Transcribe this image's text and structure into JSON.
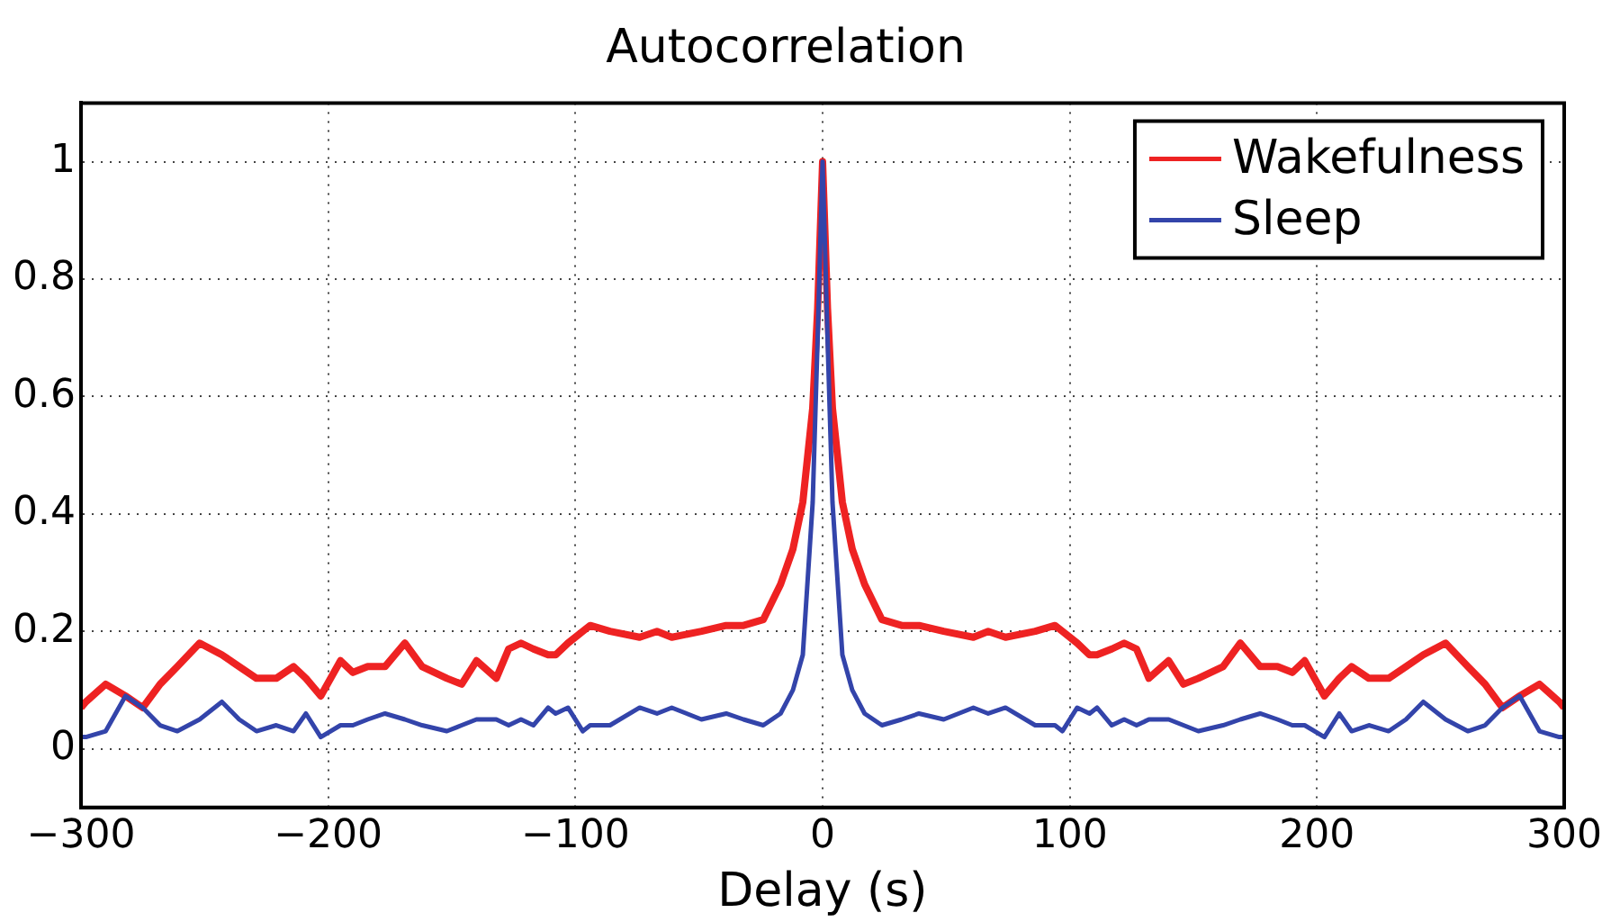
{
  "chart_data": {
    "type": "line",
    "title": "Autocorrelation",
    "xlabel": "Delay (s)",
    "x": [
      -300,
      -298,
      -290,
      -282,
      -275,
      -268,
      -261,
      -252,
      -243,
      -236,
      -229,
      -221,
      -214,
      -209,
      -203,
      -195,
      -190,
      -184,
      -177,
      -169,
      -162,
      -152,
      -146,
      -140,
      -132,
      -127,
      -122,
      -117,
      -111,
      -108,
      -103,
      -97,
      -94,
      -86,
      -74,
      -67,
      -61,
      -49,
      -39,
      -32,
      -24,
      -17,
      -12,
      -8,
      -4,
      -2,
      0,
      2,
      4,
      8,
      12,
      17,
      24,
      32,
      39,
      49,
      61,
      67,
      74,
      86,
      94,
      97,
      103,
      108,
      111,
      117,
      122,
      127,
      132,
      140,
      146,
      152,
      162,
      169,
      177,
      184,
      190,
      195,
      203,
      209,
      214,
      221,
      229,
      236,
      243,
      252,
      261,
      268,
      275,
      282,
      290,
      298,
      300
    ],
    "series": [
      {
        "name": "Wakefulness",
        "color": "#ee2222",
        "values": [
          0.07,
          0.08,
          0.11,
          0.09,
          0.07,
          0.11,
          0.14,
          0.18,
          0.16,
          0.14,
          0.12,
          0.12,
          0.14,
          0.12,
          0.09,
          0.15,
          0.13,
          0.14,
          0.14,
          0.18,
          0.14,
          0.12,
          0.11,
          0.15,
          0.12,
          0.17,
          0.18,
          0.17,
          0.16,
          0.16,
          0.18,
          0.2,
          0.21,
          0.2,
          0.19,
          0.2,
          0.19,
          0.2,
          0.21,
          0.21,
          0.22,
          0.28,
          0.34,
          0.42,
          0.58,
          0.75,
          1.0,
          0.75,
          0.58,
          0.42,
          0.34,
          0.28,
          0.22,
          0.21,
          0.21,
          0.2,
          0.19,
          0.2,
          0.19,
          0.2,
          0.21,
          0.2,
          0.18,
          0.16,
          0.16,
          0.17,
          0.18,
          0.17,
          0.12,
          0.15,
          0.11,
          0.12,
          0.14,
          0.18,
          0.14,
          0.14,
          0.13,
          0.15,
          0.09,
          0.12,
          0.14,
          0.12,
          0.12,
          0.14,
          0.16,
          0.18,
          0.14,
          0.11,
          0.07,
          0.09,
          0.11,
          0.08,
          0.07
        ]
      },
      {
        "name": "Sleep",
        "color": "#3344aa",
        "values": [
          0.02,
          0.02,
          0.03,
          0.09,
          0.07,
          0.04,
          0.03,
          0.05,
          0.08,
          0.05,
          0.03,
          0.04,
          0.03,
          0.06,
          0.02,
          0.04,
          0.04,
          0.05,
          0.06,
          0.05,
          0.04,
          0.03,
          0.04,
          0.05,
          0.05,
          0.04,
          0.05,
          0.04,
          0.07,
          0.06,
          0.07,
          0.03,
          0.04,
          0.04,
          0.07,
          0.06,
          0.07,
          0.05,
          0.06,
          0.05,
          0.04,
          0.06,
          0.1,
          0.16,
          0.42,
          0.7,
          1.0,
          0.7,
          0.42,
          0.16,
          0.1,
          0.06,
          0.04,
          0.05,
          0.06,
          0.05,
          0.07,
          0.06,
          0.07,
          0.04,
          0.04,
          0.03,
          0.07,
          0.06,
          0.07,
          0.04,
          0.05,
          0.04,
          0.05,
          0.05,
          0.04,
          0.03,
          0.04,
          0.05,
          0.06,
          0.05,
          0.04,
          0.04,
          0.02,
          0.06,
          0.03,
          0.04,
          0.03,
          0.05,
          0.08,
          0.05,
          0.03,
          0.04,
          0.07,
          0.09,
          0.03,
          0.02,
          0.02
        ]
      }
    ],
    "xlim": [
      -300,
      300
    ],
    "xticks": [
      -300,
      -200,
      -100,
      0,
      100,
      200,
      300
    ],
    "ylim": [
      -0.1,
      1.1
    ],
    "yticks": [
      0,
      0.2,
      0.4,
      0.6,
      0.8,
      1
    ],
    "grid": true,
    "legend": "top right",
    "marker": "none",
    "line_style": "solid"
  }
}
